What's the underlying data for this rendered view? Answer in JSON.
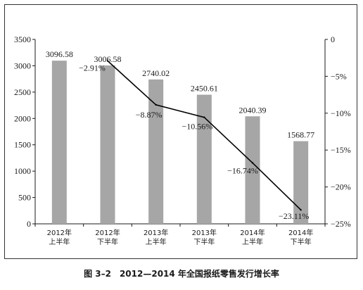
{
  "caption": "图 3–2　2012—2014 年全国报纸零售发行增长率",
  "chart_data": [
    {
      "type": "bar",
      "categories": [
        [
          "2012年",
          "上半年"
        ],
        [
          "2012年",
          "下半年"
        ],
        [
          "2013年",
          "上半年"
        ],
        [
          "2013年",
          "下半年"
        ],
        [
          "2014年",
          "上半年"
        ],
        [
          "2014年",
          "下半年"
        ]
      ],
      "values": [
        3096.58,
        3006.58,
        2740.02,
        2450.61,
        2040.39,
        1568.77
      ],
      "value_labels": [
        "3096.58",
        "3006.58",
        "2740.02",
        "2450.61",
        "2040.39",
        "1568.77"
      ],
      "ylim": [
        0,
        3500
      ],
      "yticks": [
        0,
        500,
        1000,
        1500,
        2000,
        2500,
        3000,
        3500
      ],
      "bar_color": "#a6a6a6",
      "grid": false
    },
    {
      "type": "line",
      "categories": [
        [
          "2012年",
          "下半年"
        ],
        [
          "2013年",
          "上半年"
        ],
        [
          "2013年",
          "下半年"
        ],
        [
          "2014年",
          "上半年"
        ],
        [
          "2014年",
          "下半年"
        ]
      ],
      "values": [
        -2.91,
        -8.87,
        -10.56,
        -16.74,
        -23.11
      ],
      "value_labels": [
        "−2.91%",
        "−8.87%",
        "−10.56%",
        "−16.74%",
        "−23.11%"
      ],
      "ylim": [
        -25,
        0
      ],
      "yticks": [
        0,
        -5,
        -10,
        -15,
        -20,
        -25
      ],
      "ytick_labels": [
        "0",
        "−5%",
        "−10%",
        "−15%",
        "−20%",
        "−25%"
      ],
      "axis": "right",
      "line_color": "#000000"
    }
  ]
}
